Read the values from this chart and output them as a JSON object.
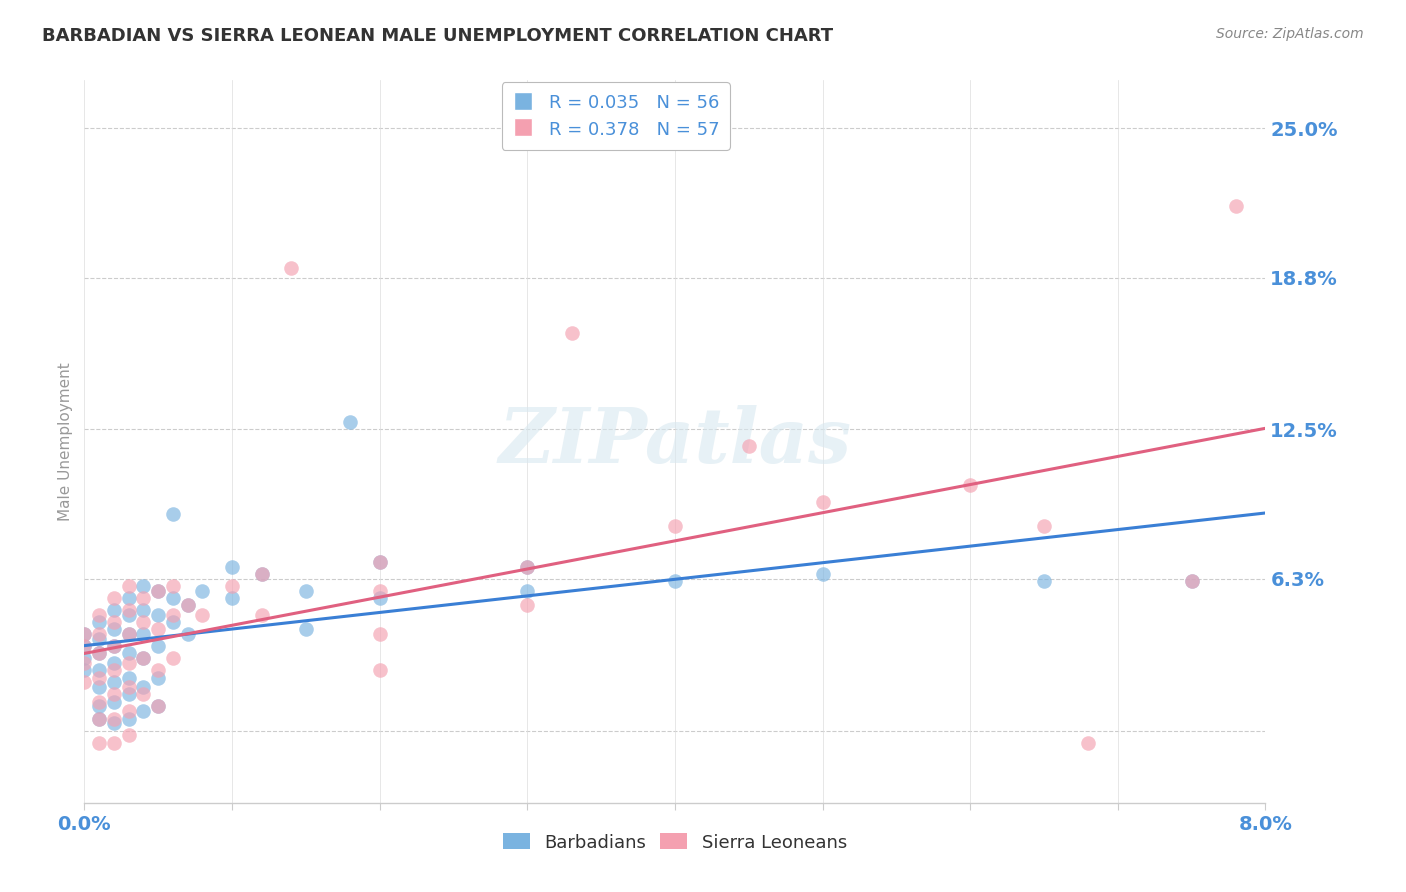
{
  "title": "BARBADIAN VS SIERRA LEONEAN MALE UNEMPLOYMENT CORRELATION CHART",
  "source": "Source: ZipAtlas.com",
  "ylabel": "Male Unemployment",
  "xlim": [
    0.0,
    0.08
  ],
  "ylim": [
    -0.03,
    0.27
  ],
  "yticks": [
    0.063,
    0.125,
    0.188,
    0.25
  ],
  "ytick_labels": [
    "6.3%",
    "12.5%",
    "18.8%",
    "25.0%"
  ],
  "xticks": [
    0.0,
    0.01,
    0.02,
    0.03,
    0.04,
    0.05,
    0.06,
    0.07,
    0.08
  ],
  "xtick_labels_show": [
    "0.0%",
    "8.0%"
  ],
  "barbadian_color": "#7ab3e0",
  "sierraleone_color": "#f4a0b0",
  "trend_barbadian_color": "#3a7fd5",
  "trend_sierraleone_color": "#e06080",
  "background_color": "#ffffff",
  "grid_color": "#cccccc",
  "title_color": "#333333",
  "axis_label_color": "#4a90d9",
  "watermark": "ZIPatlas",
  "legend_barb_r": "R = 0.035",
  "legend_barb_n": "N = 56",
  "legend_sierra_r": "R = 0.378",
  "legend_sierra_n": "N = 57",
  "barb_label": "Barbadians",
  "sierra_label": "Sierra Leoneans"
}
